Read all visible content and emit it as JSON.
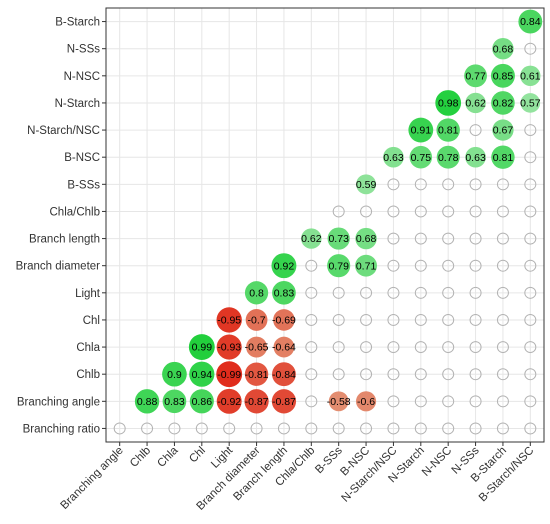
{
  "chart_data": {
    "type": "heatmap",
    "style": "correlation-bubble-lower-triangle",
    "title": "",
    "xlabel": "",
    "ylabel": "",
    "grid": true,
    "legend": "none",
    "variables": [
      "Branching ratio",
      "Branching angle",
      "Chlb",
      "Chla",
      "Chl",
      "Light",
      "Branch diameter",
      "Branch length",
      "Chla/Chlb",
      "B-SSs",
      "B-NSC",
      "N-Starch/NSC",
      "N-Starch",
      "N-NSC",
      "N-SSs",
      "B-Starch",
      "B-Starch/NSC"
    ],
    "x_labels": [
      "Branching angle",
      "Chlb",
      "Chla",
      "Chl",
      "Light",
      "Branch diameter",
      "Branch length",
      "Chla/Chlb",
      "B-SSs",
      "B-NSC",
      "N-Starch/NSC",
      "N-Starch",
      "N-NSC",
      "N-SSs",
      "B-Starch",
      "B-Starch/NSC"
    ],
    "y_labels": [
      "Branching ratio",
      "Branching angle",
      "Chlb",
      "Chla",
      "Chl",
      "Light",
      "Branch diameter",
      "Branch length",
      "Chla/Chlb",
      "B-SSs",
      "B-NSC",
      "N-Starch/NSC",
      "N-Starch",
      "N-NSC",
      "N-SSs",
      "B-Starch"
    ],
    "significant": [
      [
        "Branching angle",
        "Chlb",
        0.88
      ],
      [
        "Branching angle",
        "Chla",
        0.83
      ],
      [
        "Branching angle",
        "Chl",
        0.86
      ],
      [
        "Branching angle",
        "Light",
        -0.92
      ],
      [
        "Branching angle",
        "Branch diameter",
        -0.87
      ],
      [
        "Branching angle",
        "Branch length",
        -0.87
      ],
      [
        "Branching angle",
        "B-SSs",
        -0.58
      ],
      [
        "Branching angle",
        "B-NSC",
        -0.6
      ],
      [
        "Chlb",
        "Chla",
        0.9
      ],
      [
        "Chlb",
        "Chl",
        0.94
      ],
      [
        "Chlb",
        "Light",
        -0.99
      ],
      [
        "Chlb",
        "Branch diameter",
        -0.81
      ],
      [
        "Chlb",
        "Branch length",
        -0.84
      ],
      [
        "Chla",
        "Chl",
        0.99
      ],
      [
        "Chla",
        "Light",
        -0.93
      ],
      [
        "Chla",
        "Branch diameter",
        -0.65
      ],
      [
        "Chla",
        "Branch length",
        -0.64
      ],
      [
        "Chl",
        "Light",
        -0.95
      ],
      [
        "Chl",
        "Branch diameter",
        -0.7
      ],
      [
        "Chl",
        "Branch length",
        -0.69
      ],
      [
        "Light",
        "Branch diameter",
        0.8
      ],
      [
        "Light",
        "Branch length",
        0.83
      ],
      [
        "Branch diameter",
        "Branch length",
        0.92
      ],
      [
        "Branch diameter",
        "B-SSs",
        0.79
      ],
      [
        "Branch diameter",
        "B-NSC",
        0.71
      ],
      [
        "Branch length",
        "Chla/Chlb",
        0.62
      ],
      [
        "Branch length",
        "B-SSs",
        0.73
      ],
      [
        "Branch length",
        "B-NSC",
        0.68
      ],
      [
        "B-SSs",
        "B-NSC",
        0.59
      ],
      [
        "B-NSC",
        "N-Starch/NSC",
        0.63
      ],
      [
        "B-NSC",
        "N-Starch",
        0.75
      ],
      [
        "B-NSC",
        "N-NSC",
        0.78
      ],
      [
        "B-NSC",
        "N-SSs",
        0.63
      ],
      [
        "B-NSC",
        "B-Starch",
        0.81
      ],
      [
        "N-Starch/NSC",
        "N-Starch",
        0.91
      ],
      [
        "N-Starch/NSC",
        "N-NSC",
        0.81
      ],
      [
        "N-Starch/NSC",
        "B-Starch",
        0.67
      ],
      [
        "N-Starch",
        "N-NSC",
        0.98
      ],
      [
        "N-Starch",
        "N-SSs",
        0.62
      ],
      [
        "N-Starch",
        "B-Starch",
        0.82
      ],
      [
        "N-Starch",
        "B-Starch/NSC",
        0.57
      ],
      [
        "N-NSC",
        "N-SSs",
        0.77
      ],
      [
        "N-NSC",
        "B-Starch",
        0.85
      ],
      [
        "N-NSC",
        "B-Starch/NSC",
        0.61
      ],
      [
        "N-SSs",
        "B-Starch",
        0.68
      ],
      [
        "B-Starch",
        "B-Starch/NSC",
        0.84
      ]
    ],
    "colors": {
      "positive": "#1fcf3a",
      "negative": "#e02a1a",
      "empty_stroke": "#b3b3b3",
      "grid": "#e6e6e6",
      "axis": "#333333"
    }
  }
}
